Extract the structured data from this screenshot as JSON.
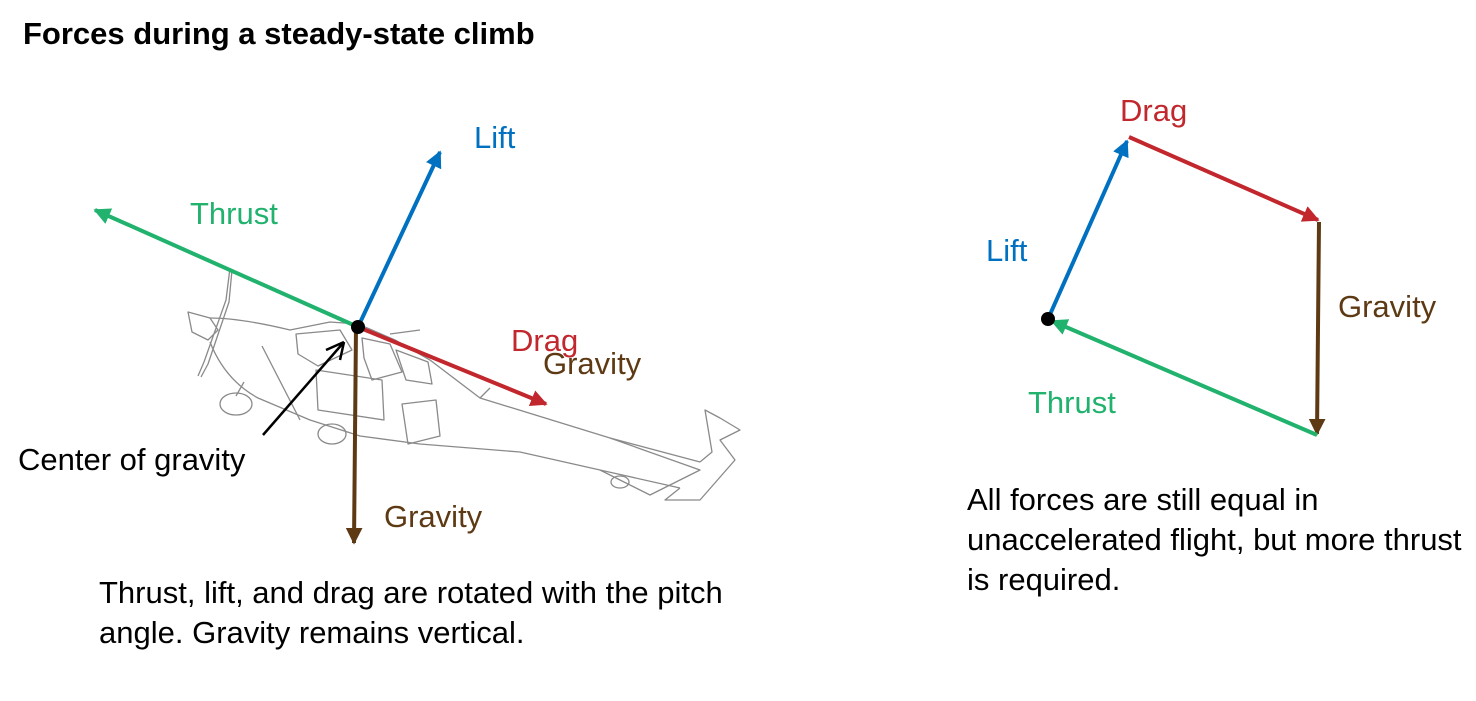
{
  "title": "Forces during a steady-state climb",
  "colors": {
    "lift": "#0070c0",
    "thrust": "#21b26e",
    "drag": "#c1272d",
    "gravity": "#5e3a14",
    "airplane": "#8a8a8a"
  },
  "left": {
    "labels": {
      "lift": "Lift",
      "thrust": "Thrust",
      "drag": "Drag",
      "gravity_overlap": "Gravity",
      "gravity": "Gravity",
      "cg": "Center of gravity"
    },
    "caption": "Thrust, lift, and drag are rotated with the pitch angle. Gravity remains vertical."
  },
  "right": {
    "labels": {
      "drag": "Drag",
      "lift": "Lift",
      "gravity": "Gravity",
      "thrust": "Thrust"
    },
    "caption": "All forces are still equal in unaccelerated flight, but more thrust is required."
  }
}
